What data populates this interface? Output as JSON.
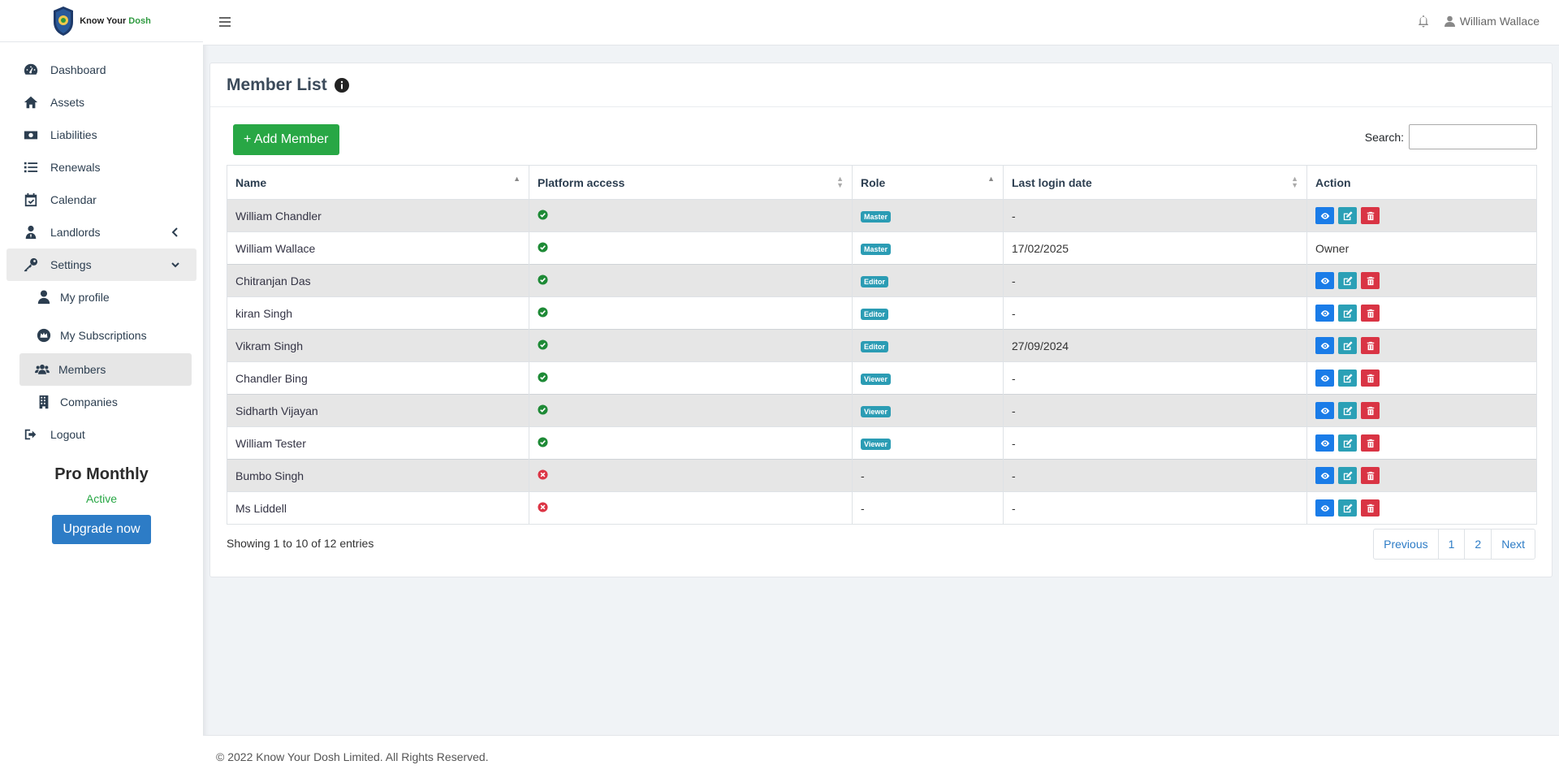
{
  "brand": {
    "name_prefix": "Know Your",
    "name_suffix": "Dosh"
  },
  "sidebar": {
    "items": [
      {
        "label": "Dashboard",
        "icon": "gauge-icon"
      },
      {
        "label": "Assets",
        "icon": "home-icon"
      },
      {
        "label": "Liabilities",
        "icon": "money-icon"
      },
      {
        "label": "Renewals",
        "icon": "list-icon"
      },
      {
        "label": "Calendar",
        "icon": "calendar-check-icon"
      },
      {
        "label": "Landlords",
        "icon": "user-tie-icon"
      },
      {
        "label": "Settings",
        "icon": "key-icon"
      }
    ],
    "sub_items": [
      {
        "label": "My profile",
        "icon": "user-icon"
      },
      {
        "label": "My Subscriptions",
        "icon": "crown-icon"
      },
      {
        "label": "Members",
        "icon": "users-icon"
      },
      {
        "label": "Companies",
        "icon": "building-icon"
      }
    ],
    "logout": "Logout",
    "plan": {
      "name": "Pro Monthly",
      "status": "Active",
      "upgrade": "Upgrade now"
    }
  },
  "topbar": {
    "user_name": "William Wallace"
  },
  "page": {
    "title": "Member List",
    "add_button": "+ Add Member",
    "search_label": "Search:",
    "search_value": ""
  },
  "table": {
    "columns": [
      "Name",
      "Platform access",
      "Role",
      "Last login date",
      "Action"
    ],
    "rows": [
      {
        "name": "William Chandler",
        "access": true,
        "role": "Master",
        "last_login": "-",
        "action": "buttons"
      },
      {
        "name": "William Wallace",
        "access": true,
        "role": "Master",
        "last_login": "17/02/2025",
        "action": "Owner"
      },
      {
        "name": "Chitranjan Das",
        "access": true,
        "role": "Editor",
        "last_login": "-",
        "action": "buttons"
      },
      {
        "name": "kiran Singh",
        "access": true,
        "role": "Editor",
        "last_login": "-",
        "action": "buttons"
      },
      {
        "name": "Vikram Singh",
        "access": true,
        "role": "Editor",
        "last_login": "27/09/2024",
        "action": "buttons"
      },
      {
        "name": "Chandler Bing",
        "access": true,
        "role": "Viewer",
        "last_login": "-",
        "action": "buttons"
      },
      {
        "name": "Sidharth Vijayan",
        "access": true,
        "role": "Viewer",
        "last_login": "-",
        "action": "buttons"
      },
      {
        "name": "William Tester",
        "access": true,
        "role": "Viewer",
        "last_login": "-",
        "action": "buttons"
      },
      {
        "name": "Bumbo Singh",
        "access": false,
        "role": "-",
        "last_login": "-",
        "action": "buttons"
      },
      {
        "name": "Ms Liddell",
        "access": false,
        "role": "-",
        "last_login": "-",
        "action": "buttons"
      }
    ]
  },
  "pagination": {
    "info": "Showing 1 to 10 of 12 entries",
    "previous": "Previous",
    "pages": [
      "1",
      "2"
    ],
    "next": "Next"
  },
  "footer": {
    "text": "© 2022 Know Your Dosh Limited. All Rights Reserved."
  },
  "colors": {
    "add_button": "#28a745",
    "upgrade_button": "#2d7cc6",
    "badge": "#2b9cb4",
    "view_button": "#1a7ce8",
    "edit_button": "#2ba0b6",
    "delete_button": "#d93444",
    "access_yes": "#28a745",
    "access_no": "#dc3545"
  }
}
